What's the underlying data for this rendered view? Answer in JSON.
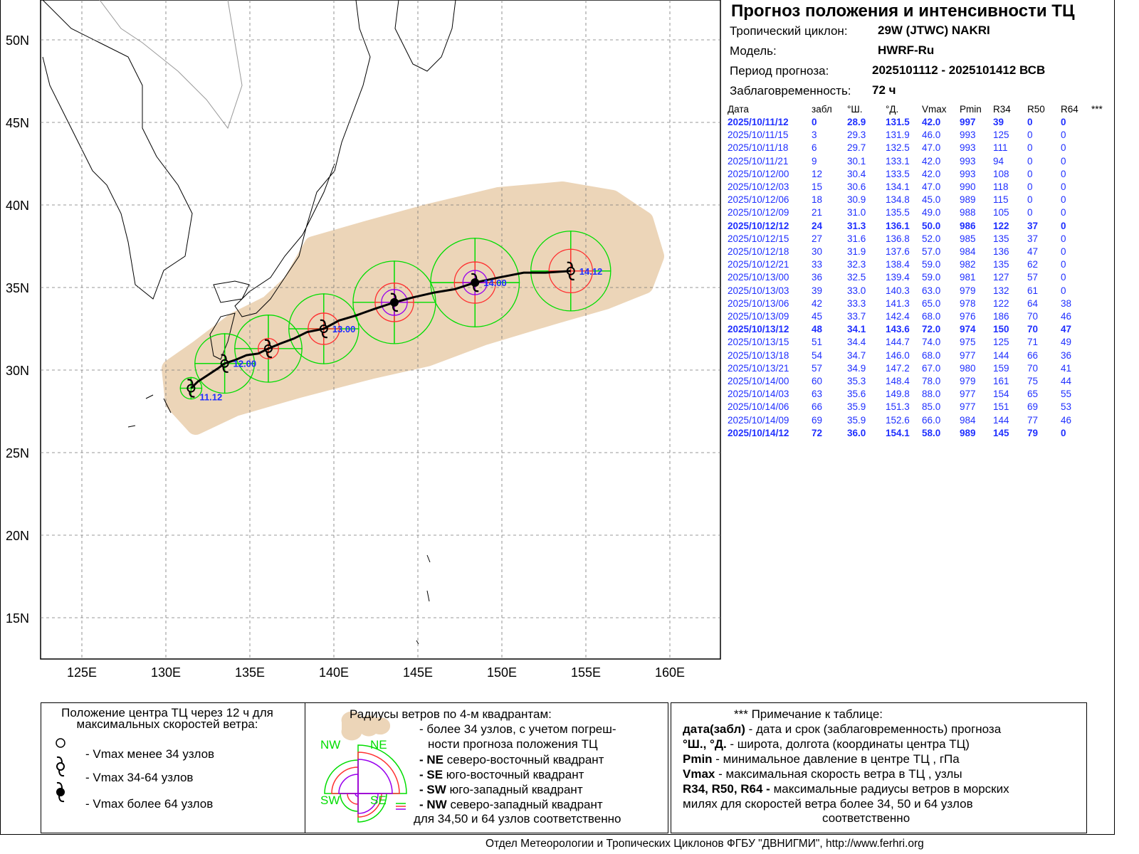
{
  "header": {
    "title": "Прогноз положения и интенсивности ТЦ",
    "cyclone_label": "Тропический циклон:",
    "cyclone_value": "29W (JTWC)  NAKRI",
    "model_label": "Модель:",
    "model_value": "HWRF-Ru",
    "period_label": "Период прогноза:",
    "period_value": "2025101112 - 2025101412 ВСВ",
    "lead_label": "Заблаговременность:",
    "lead_value": "72 ч"
  },
  "table": {
    "columns": [
      "Дата",
      "забл",
      "°Ш.",
      "°Д.",
      "Vmax",
      "Pmin",
      "R34",
      "R50",
      "R64",
      "***"
    ],
    "rows": [
      [
        "2025/10/11/12",
        "0",
        "28.9",
        "131.5",
        "42.0",
        "997",
        "39",
        "0",
        "0"
      ],
      [
        "2025/10/11/15",
        "3",
        "29.3",
        "131.9",
        "46.0",
        "993",
        "125",
        "0",
        "0"
      ],
      [
        "2025/10/11/18",
        "6",
        "29.7",
        "132.5",
        "47.0",
        "993",
        "111",
        "0",
        "0"
      ],
      [
        "2025/10/11/21",
        "9",
        "30.1",
        "133.1",
        "42.0",
        "993",
        "94",
        "0",
        "0"
      ],
      [
        "2025/10/12/00",
        "12",
        "30.4",
        "133.5",
        "42.0",
        "993",
        "108",
        "0",
        "0"
      ],
      [
        "2025/10/12/03",
        "15",
        "30.6",
        "134.1",
        "47.0",
        "990",
        "118",
        "0",
        "0"
      ],
      [
        "2025/10/12/06",
        "18",
        "30.9",
        "134.8",
        "45.0",
        "989",
        "115",
        "0",
        "0"
      ],
      [
        "2025/10/12/09",
        "21",
        "31.0",
        "135.5",
        "49.0",
        "988",
        "105",
        "0",
        "0"
      ],
      [
        "2025/10/12/12",
        "24",
        "31.3",
        "136.1",
        "50.0",
        "986",
        "122",
        "37",
        "0"
      ],
      [
        "2025/10/12/15",
        "27",
        "31.6",
        "136.8",
        "52.0",
        "985",
        "135",
        "37",
        "0"
      ],
      [
        "2025/10/12/18",
        "30",
        "31.9",
        "137.6",
        "57.0",
        "984",
        "136",
        "47",
        "0"
      ],
      [
        "2025/10/12/21",
        "33",
        "32.3",
        "138.4",
        "59.0",
        "982",
        "135",
        "62",
        "0"
      ],
      [
        "2025/10/13/00",
        "36",
        "32.5",
        "139.4",
        "59.0",
        "981",
        "127",
        "57",
        "0"
      ],
      [
        "2025/10/13/03",
        "39",
        "33.0",
        "140.3",
        "63.0",
        "979",
        "132",
        "61",
        "0"
      ],
      [
        "2025/10/13/06",
        "42",
        "33.3",
        "141.3",
        "65.0",
        "978",
        "122",
        "64",
        "38"
      ],
      [
        "2025/10/13/09",
        "45",
        "33.7",
        "142.4",
        "68.0",
        "976",
        "186",
        "70",
        "46"
      ],
      [
        "2025/10/13/12",
        "48",
        "34.1",
        "143.6",
        "72.0",
        "974",
        "150",
        "70",
        "47"
      ],
      [
        "2025/10/13/15",
        "51",
        "34.4",
        "144.7",
        "74.0",
        "975",
        "125",
        "71",
        "49"
      ],
      [
        "2025/10/13/18",
        "54",
        "34.7",
        "146.0",
        "68.0",
        "977",
        "144",
        "66",
        "36"
      ],
      [
        "2025/10/13/21",
        "57",
        "34.9",
        "147.2",
        "67.0",
        "980",
        "159",
        "70",
        "41"
      ],
      [
        "2025/10/14/00",
        "60",
        "35.3",
        "148.4",
        "78.0",
        "979",
        "161",
        "75",
        "44"
      ],
      [
        "2025/10/14/03",
        "63",
        "35.6",
        "149.8",
        "88.0",
        "977",
        "154",
        "65",
        "55"
      ],
      [
        "2025/10/14/06",
        "66",
        "35.9",
        "151.3",
        "85.0",
        "977",
        "151",
        "69",
        "53"
      ],
      [
        "2025/10/14/09",
        "69",
        "35.9",
        "152.6",
        "66.0",
        "984",
        "144",
        "77",
        "46"
      ],
      [
        "2025/10/14/12",
        "72",
        "36.0",
        "154.1",
        "58.0",
        "989",
        "145",
        "79",
        "0"
      ]
    ]
  },
  "map": {
    "lat_labels": [
      "50N",
      "45N",
      "40N",
      "35N",
      "30N",
      "25N",
      "20N",
      "15N"
    ],
    "lon_labels": [
      "125E",
      "130E",
      "135E",
      "140E",
      "145E",
      "150E",
      "155E",
      "160E"
    ],
    "point_labels": [
      {
        "i": 0,
        "t": "11.12"
      },
      {
        "i": 4,
        "t": "12.00"
      },
      {
        "i": 12,
        "t": "13.00"
      },
      {
        "i": 20,
        "t": "14.00"
      },
      {
        "i": 24,
        "t": "14.12"
      }
    ],
    "colors": {
      "cone": "#ecd5b8",
      "r34": "#00dd00",
      "r50": "#ff3030",
      "r64": "#9900ee",
      "label": "#1f2fff"
    }
  },
  "legend": {
    "left_title": "Положение центра ТЦ через 12 ч для максимальных скоростей ветра:",
    "left_items": [
      "- Vmax  менее 34 узлов",
      "- Vmax  34-64 узлов",
      "- Vmax  более 64 узлов"
    ],
    "mid_title": "Радиусы ветров по 4-м квадрантам:",
    "mid_items": [
      "- более 34 узлов, с учетом погреш-",
      "ности прогноза положения ТЦ"
    ],
    "quadrants": [
      {
        "k": "- NE",
        "t": "северо-восточный квадрант"
      },
      {
        "k": "- SE",
        "t": "юго-восточный квадрант"
      },
      {
        "k": "- SW",
        "t": "юго-западный квадрант"
      },
      {
        "k": "- NW",
        "t": "северо-западный квадрант"
      }
    ],
    "mid_last": "для 34,50 и 64 узлов соответственно",
    "quad_labels": [
      "NW",
      "NE",
      "SW",
      "SE"
    ],
    "right_title": "*** Примечание к таблице:",
    "right_items": [
      {
        "k": "дата(забл)",
        "t": " - дата и срок (заблаговременность) прогноза"
      },
      {
        "k": "°Ш., °Д.",
        "t": " - широта, долгота   (координаты центра ТЦ)"
      },
      {
        "k": "Pmin",
        "t": " - минимальное давление в центре ТЦ , гПа"
      },
      {
        "k": "Vmax",
        "t": "   -  максимальная скорость ветра в ТЦ , узлы"
      },
      {
        "k": "R34, R50, R64 -",
        "t": "  максимальные радиусы ветров в морских"
      }
    ],
    "right_tail1": "милях для скоростей ветра более 34, 50 и 64 узлов",
    "right_tail2": "соответственно"
  },
  "footer": "Отдел Метеорологии и Тропических Циклонов ФГБУ \"ДВНИГМИ\",  http://www.ferhri.org"
}
